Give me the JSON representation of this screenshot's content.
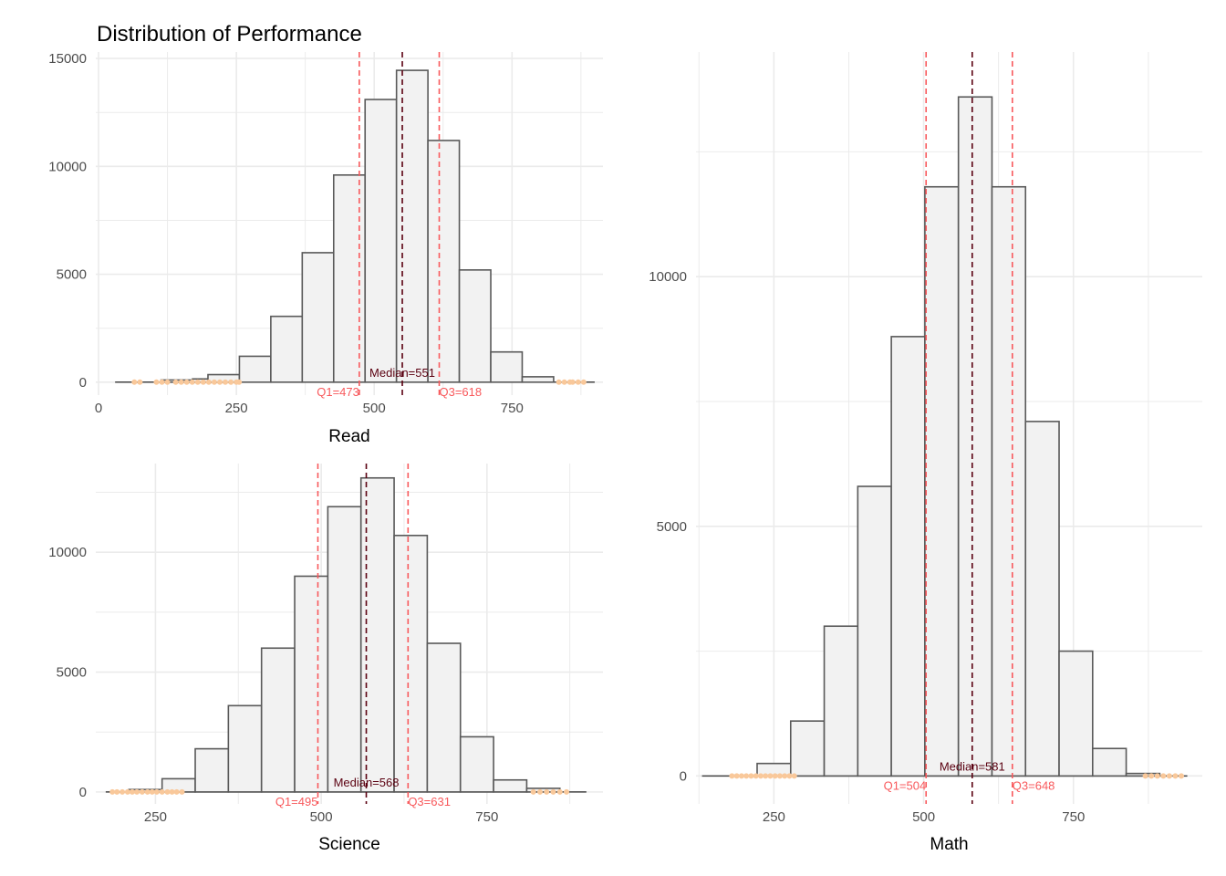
{
  "title": "Distribution of Performance",
  "colors": {
    "bar_fill": "#f2f2f2",
    "bar_stroke": "#595959",
    "grid": "#ebebeb",
    "quartile": "#f8595c",
    "median": "#5a0010",
    "outlier": "#f9c89a",
    "baseline": "#444444"
  },
  "chart_data": [
    {
      "id": "read",
      "type": "bar",
      "xlabel": "Read",
      "xlim": [
        -5,
        915
      ],
      "ylim": [
        -600,
        15300
      ],
      "xticks": [
        0,
        250,
        500,
        750
      ],
      "yticks": [
        0,
        5000,
        10000,
        15000
      ],
      "bin_width": 57,
      "bins": [
        {
          "x": 142,
          "count": 100
        },
        {
          "x": 199,
          "count": 150
        },
        {
          "x": 227,
          "count": 350
        },
        {
          "x": 284,
          "count": 1200
        },
        {
          "x": 341,
          "count": 3050
        },
        {
          "x": 398,
          "count": 6000
        },
        {
          "x": 455,
          "count": 9600
        },
        {
          "x": 512,
          "count": 13100
        },
        {
          "x": 569,
          "count": 14450
        },
        {
          "x": 626,
          "count": 11200
        },
        {
          "x": 683,
          "count": 5200
        },
        {
          "x": 740,
          "count": 1400
        },
        {
          "x": 797,
          "count": 250
        }
      ],
      "baseline_range": [
        30,
        900
      ],
      "q1": 473,
      "median": 551,
      "q3": 618,
      "q1_label": "Q1=473",
      "median_label": "Median=551",
      "q3_label": "Q3=618",
      "outliers_low": [
        65,
        75,
        105,
        115,
        125,
        140,
        150,
        160,
        170,
        180,
        190,
        200,
        210,
        220,
        230,
        240,
        250,
        255
      ],
      "outliers_high": [
        835,
        845,
        855,
        860,
        870,
        880
      ]
    },
    {
      "id": "science",
      "type": "bar",
      "xlabel": "Science",
      "xlim": [
        160,
        925
      ],
      "ylim": [
        -500,
        13700
      ],
      "xticks": [
        250,
        500,
        750
      ],
      "yticks": [
        0,
        5000,
        10000
      ],
      "bin_width": 50,
      "bins": [
        {
          "x": 235,
          "count": 100
        },
        {
          "x": 285,
          "count": 550
        },
        {
          "x": 335,
          "count": 1800
        },
        {
          "x": 385,
          "count": 3600
        },
        {
          "x": 435,
          "count": 6000
        },
        {
          "x": 485,
          "count": 9000
        },
        {
          "x": 535,
          "count": 11900
        },
        {
          "x": 585,
          "count": 13100
        },
        {
          "x": 635,
          "count": 10700
        },
        {
          "x": 685,
          "count": 6200
        },
        {
          "x": 735,
          "count": 2300
        },
        {
          "x": 785,
          "count": 500
        },
        {
          "x": 835,
          "count": 150
        }
      ],
      "baseline_range": [
        175,
        900
      ],
      "q1": 495,
      "median": 568,
      "q3": 631,
      "q1_label": "Q1=495",
      "median_label": "Median=568",
      "q3_label": "Q3=631",
      "outliers_low": [
        185,
        192,
        200,
        208,
        215,
        222,
        230,
        238,
        245,
        252,
        260,
        268,
        275,
        282,
        290
      ],
      "outliers_high": [
        820,
        830,
        840,
        850,
        860,
        870
      ]
    },
    {
      "id": "math",
      "type": "bar",
      "xlabel": "Math",
      "xlim": [
        120,
        965
      ],
      "ylim": [
        -560,
        14500
      ],
      "xticks": [
        250,
        500,
        750
      ],
      "yticks": [
        0,
        5000,
        10000
      ],
      "bin_width": 56,
      "bins": [
        {
          "x": 250,
          "count": 250
        },
        {
          "x": 306,
          "count": 1100
        },
        {
          "x": 362,
          "count": 3000
        },
        {
          "x": 418,
          "count": 5800
        },
        {
          "x": 474,
          "count": 8800
        },
        {
          "x": 530,
          "count": 11800
        },
        {
          "x": 586,
          "count": 13600
        },
        {
          "x": 642,
          "count": 11800
        },
        {
          "x": 698,
          "count": 7100
        },
        {
          "x": 754,
          "count": 2500
        },
        {
          "x": 810,
          "count": 550
        },
        {
          "x": 866,
          "count": 50
        }
      ],
      "baseline_range": [
        130,
        940
      ],
      "q1": 504,
      "median": 581,
      "q3": 648,
      "q1_label": "Q1=504",
      "median_label": "Median=581",
      "q3_label": "Q3=648",
      "outliers_low": [
        180,
        188,
        196,
        204,
        212,
        220,
        228,
        236,
        244,
        252,
        260,
        268,
        276,
        284
      ],
      "outliers_high": [
        870,
        880,
        890,
        900,
        910,
        920,
        930
      ]
    }
  ]
}
